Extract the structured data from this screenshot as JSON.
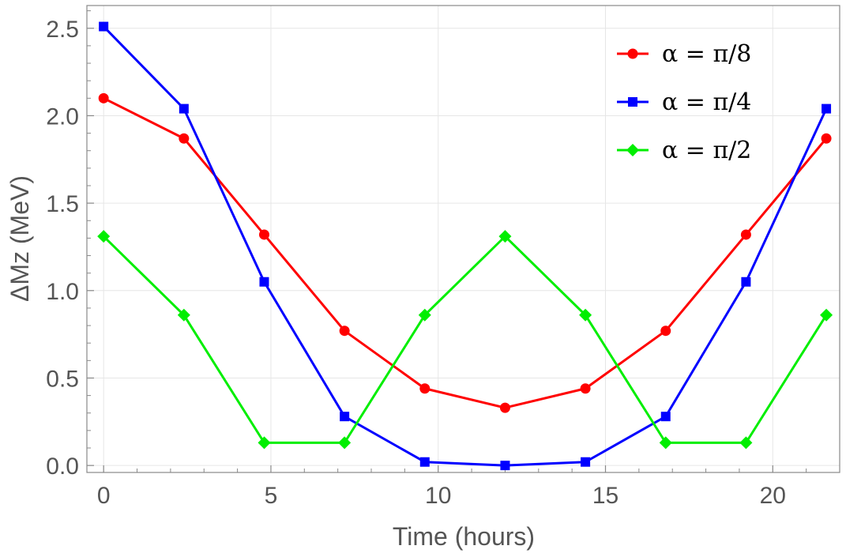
{
  "chart_data": {
    "type": "line",
    "title": "",
    "xlabel": "Time (hours)",
    "ylabel": "ΔMz (MeV)",
    "xlim": [
      -0.5,
      22
    ],
    "ylim": [
      -0.04,
      2.63
    ],
    "xticks": [
      0,
      5,
      10,
      15,
      20
    ],
    "xtick_labels": [
      "0",
      "5",
      "10",
      "15",
      "20"
    ],
    "yticks": [
      0.0,
      0.5,
      1.0,
      1.5,
      2.0,
      2.5
    ],
    "ytick_labels": [
      "0.0",
      "0.5",
      "1.0",
      "1.5",
      "2.0",
      "2.5"
    ],
    "grid": true,
    "legend_position": "top-right",
    "x": [
      0,
      2.4,
      4.8,
      7.2,
      9.6,
      12,
      14.4,
      16.8,
      19.2,
      21.6
    ],
    "series": [
      {
        "name": "α = π/8",
        "color": "#ff0000",
        "marker": "circle",
        "values": [
          2.1,
          1.87,
          1.32,
          0.77,
          0.44,
          0.33,
          0.44,
          0.77,
          1.32,
          1.87
        ]
      },
      {
        "name": "α = π/4",
        "color": "#0000ff",
        "marker": "square",
        "values": [
          2.51,
          2.04,
          1.05,
          0.28,
          0.02,
          0.0,
          0.02,
          0.28,
          1.05,
          2.04
        ]
      },
      {
        "name": "α = π/2",
        "color": "#00ee00",
        "marker": "diamond",
        "values": [
          1.31,
          0.86,
          0.13,
          0.13,
          0.86,
          1.31,
          0.86,
          0.13,
          0.13,
          0.86
        ]
      }
    ]
  }
}
